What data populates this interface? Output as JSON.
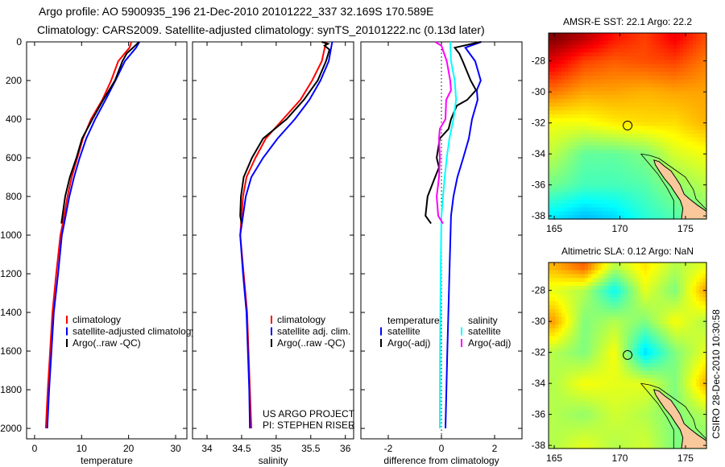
{
  "header": {
    "line1": "Argo profile: AO 5900935_196 21-Dec-2010 20101222_337 32.169S 170.589E",
    "line2": "Climatology: CARS2009. Satellite-adjusted climatology: synTS_20101222.nc (0.13d later)"
  },
  "credit": {
    "project": "US ARGO PROJECT",
    "pi": "PI: STEPHEN RISER",
    "stamp": "CSIRO 28-Dec-2010 10:30:58"
  },
  "colors": {
    "red": "#ff0000",
    "blue": "#0000ff",
    "black": "#000000",
    "cyan": "#00ffff",
    "magenta": "#ff00ff",
    "land": "#f9c89b"
  },
  "chart_data": [
    {
      "id": "temperature",
      "type": "line",
      "xlabel": "temperature",
      "ylabel": "",
      "xlim": [
        -1.7,
        32.4
      ],
      "ylim": [
        0,
        2054
      ],
      "y_reversed": true,
      "xticks": [
        0,
        10,
        20,
        30
      ],
      "yticks": [
        0,
        200,
        400,
        600,
        800,
        1000,
        1200,
        1400,
        1600,
        1800,
        2000
      ],
      "legend": [
        "climatology",
        "satellite-adjusted climatology",
        "Argo(..raw -QC)"
      ],
      "series": [
        {
          "name": "climatology",
          "color": "red",
          "depth": [
            0,
            30,
            100,
            200,
            300,
            400,
            500,
            600,
            700,
            800,
            940,
            1000,
            1200,
            1400,
            1600,
            1800,
            2000
          ],
          "values": [
            20.6,
            20.2,
            17.8,
            16.3,
            14.4,
            12.0,
            10.3,
            9.1,
            7.9,
            7.0,
            6.0,
            5.5,
            4.6,
            3.8,
            3.3,
            2.8,
            2.4
          ]
        },
        {
          "name": "satellite-adjusted climatology",
          "color": "blue",
          "depth": [
            0,
            30,
            100,
            200,
            300,
            400,
            500,
            600,
            700,
            800,
            940,
            1000,
            1200,
            1400,
            1600,
            1800,
            2000
          ],
          "values": [
            22.3,
            21.6,
            19.2,
            17.2,
            15.1,
            12.9,
            11.0,
            9.6,
            8.4,
            7.4,
            6.3,
            5.8,
            5.0,
            4.1,
            3.6,
            3.1,
            2.7
          ]
        },
        {
          "name": "Argo(..raw -QC)",
          "color": "black",
          "depth": [
            0,
            20,
            60,
            100,
            200,
            300,
            400,
            500,
            600,
            700,
            800,
            940
          ],
          "values": [
            22.2,
            21.4,
            19.6,
            18.7,
            17.1,
            14.6,
            12.3,
            10.1,
            8.9,
            7.5,
            6.5,
            5.7
          ]
        }
      ]
    },
    {
      "id": "salinity",
      "type": "line",
      "xlabel": "salinity",
      "xlim": [
        33.79,
        36.12
      ],
      "ylim": [
        0,
        2054
      ],
      "y_reversed": true,
      "xticks": [
        34,
        34.5,
        35,
        35.5,
        36
      ],
      "legend": [
        "climatology",
        "satellite adj. clim.",
        "Argo(..raw -QC)"
      ],
      "series": [
        {
          "name": "climatology",
          "color": "red",
          "depth": [
            0,
            100,
            200,
            300,
            400,
            500,
            600,
            700,
            800,
            900,
            1000,
            1200,
            1400,
            1600,
            1800,
            2000
          ],
          "values": [
            35.72,
            35.66,
            35.52,
            35.35,
            35.1,
            34.85,
            34.7,
            34.57,
            34.52,
            34.5,
            34.48,
            34.53,
            34.58,
            34.6,
            34.62,
            34.64
          ]
        },
        {
          "name": "satellite adj. clim.",
          "color": "blue",
          "depth": [
            0,
            100,
            200,
            300,
            400,
            500,
            600,
            700,
            800,
            900,
            1000,
            1200,
            1400,
            1600,
            1800,
            2000
          ],
          "values": [
            35.81,
            35.76,
            35.64,
            35.48,
            35.27,
            35.02,
            34.81,
            34.64,
            34.56,
            34.52,
            34.48,
            34.52,
            34.57,
            34.59,
            34.61,
            34.62
          ]
        },
        {
          "name": "Argo(..raw -QC)",
          "color": "black",
          "depth": [
            0,
            10,
            20,
            40,
            100,
            200,
            300,
            400,
            500,
            600,
            700,
            800,
            900,
            940
          ],
          "values": [
            35.66,
            35.75,
            35.7,
            35.77,
            35.72,
            35.6,
            35.4,
            35.15,
            34.81,
            34.65,
            34.53,
            34.49,
            34.48,
            34.5
          ]
        }
      ]
    },
    {
      "id": "difference",
      "type": "line",
      "xlabel": "difference from climatology",
      "xlim": [
        -3.03,
        3.03
      ],
      "ylim": [
        0,
        2054
      ],
      "y_reversed": true,
      "xticks": [
        -2,
        0,
        2
      ],
      "zero_line": true,
      "legend_headers": [
        "temperature",
        "salinity"
      ],
      "legend": [
        "satellite",
        "Argo(-adj)",
        "satellite",
        "Argo(-adj)"
      ],
      "series": [
        {
          "name": "temperature satellite",
          "color": "blue",
          "depth": [
            0,
            30,
            100,
            200,
            250,
            300,
            400,
            500,
            600,
            700,
            800,
            900,
            1200,
            1600,
            2000
          ],
          "values": [
            1.5,
            0.9,
            1.27,
            1.48,
            1.33,
            1.36,
            1.15,
            1.03,
            0.82,
            0.6,
            0.45,
            0.36,
            0.3,
            0.22,
            0.15
          ]
        },
        {
          "name": "temperature Argo(-adj)",
          "color": "black",
          "depth": [
            0,
            30,
            60,
            100,
            200,
            250,
            300,
            330,
            400,
            450,
            500,
            600,
            650,
            700,
            800,
            900,
            940
          ],
          "values": [
            1.48,
            0.5,
            0.67,
            0.8,
            1.1,
            1.3,
            0.97,
            0.58,
            0.36,
            0.27,
            -0.06,
            -0.18,
            -0.09,
            -0.24,
            -0.52,
            -0.6,
            -0.39
          ]
        },
        {
          "name": "salinity satellite",
          "color": "cyan",
          "depth": [
            0,
            100,
            200,
            300,
            400,
            500,
            600,
            700,
            800,
            900,
            1200,
            1600,
            2000
          ],
          "values": [
            0.33,
            0.36,
            0.5,
            0.55,
            0.45,
            0.3,
            0.2,
            0.12,
            0.06,
            0.0,
            -0.03,
            -0.05,
            -0.06
          ]
        },
        {
          "name": "salinity Argo(-adj)",
          "color": "magenta",
          "depth": [
            0,
            20,
            100,
            200,
            250,
            300,
            400,
            450,
            500,
            600,
            700,
            800,
            900,
            940
          ],
          "values": [
            -0.24,
            0.0,
            0.2,
            0.33,
            0.36,
            0.18,
            0.15,
            -0.06,
            -0.09,
            -0.06,
            -0.09,
            -0.18,
            -0.12,
            0.06
          ]
        }
      ]
    },
    {
      "id": "sst-map",
      "type": "heatmap",
      "title": "AMSR-E SST: 22.1 Argo: 22.2",
      "xlim": [
        164.57,
        176.6
      ],
      "ylim": [
        -38.2,
        -26.2
      ],
      "xticks": [
        165,
        170,
        175
      ],
      "yticks": [
        -28,
        -30,
        -32,
        -34,
        -36,
        -38
      ],
      "color_range": [
        17,
        24
      ],
      "colormap": "jet",
      "grid_lons": [
        165,
        167.3,
        169.6,
        171.9,
        174.2,
        176.5
      ],
      "grid_lats": [
        -26.5,
        -28,
        -30,
        -32,
        -34,
        -36,
        -38
      ],
      "values": [
        [
          24.0,
          23.6,
          23.0,
          22.7,
          23.2,
          22.6
        ],
        [
          23.3,
          22.7,
          22.5,
          22.6,
          22.7,
          22.3
        ],
        [
          22.3,
          22.0,
          22.0,
          21.9,
          22.0,
          22.0
        ],
        [
          21.3,
          21.3,
          21.5,
          21.6,
          21.6,
          21.9
        ],
        [
          20.9,
          20.3,
          20.3,
          20.5,
          21.1,
          21.3
        ],
        [
          20.4,
          20.1,
          20.1,
          20.2,
          20.6,
          20.9
        ],
        [
          19.5,
          19.2,
          19.4,
          19.9,
          20.2,
          20.5
        ]
      ],
      "argo_position": {
        "lon": 170.589,
        "lat": -32.169
      }
    },
    {
      "id": "sla-map",
      "type": "heatmap",
      "title": "Altimetric SLA: 0.12 Argo: NaN",
      "xlim": [
        164.57,
        176.6
      ],
      "ylim": [
        -38.2,
        -26.2
      ],
      "xticks": [
        165,
        170,
        175
      ],
      "yticks": [
        -28,
        -30,
        -32,
        -34,
        -36,
        -38
      ],
      "color_range": [
        -0.5,
        0.5
      ],
      "colormap": "jet",
      "grid_lons": [
        165,
        167.3,
        169.6,
        171.9,
        174.2,
        176.5
      ],
      "grid_lats": [
        -26.5,
        -28,
        -30,
        -32,
        -34,
        -36,
        -38
      ],
      "values": [
        [
          0.2,
          0.28,
          0.05,
          0.15,
          0.05,
          0.1
        ],
        [
          0.1,
          0.05,
          -0.12,
          0.1,
          0.0,
          0.22
        ],
        [
          0.22,
          0.0,
          0.05,
          0.0,
          0.12,
          0.05
        ],
        [
          0.05,
          0.0,
          0.12,
          -0.16,
          0.0,
          0.1
        ],
        [
          0.05,
          0.12,
          0.1,
          0.1,
          0.0,
          0.2
        ],
        [
          0.05,
          0.02,
          0.08,
          0.05,
          0.0,
          0.05
        ],
        [
          0.05,
          0.1,
          0.05,
          0.08,
          0.0,
          0.0
        ]
      ],
      "argo_position": {
        "lon": 170.589,
        "lat": -32.169
      }
    }
  ]
}
